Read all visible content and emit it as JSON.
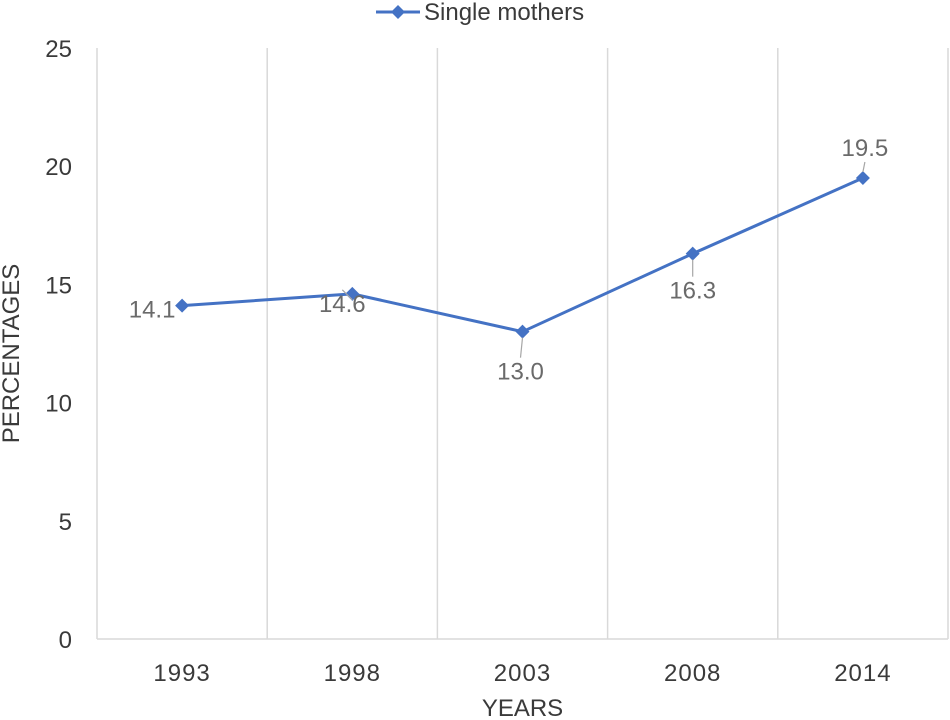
{
  "chart_data": {
    "type": "line",
    "categories": [
      "1993",
      "1998",
      "2003",
      "2008",
      "2014"
    ],
    "series": [
      {
        "name": "Single mothers",
        "values": [
          14.1,
          14.6,
          13.0,
          16.3,
          19.5
        ],
        "labels": [
          "14.1",
          "14.6",
          "13.0",
          "16.3",
          "19.5"
        ]
      }
    ],
    "xlabel": "YEARS",
    "ylabel": "PERCENTAGES",
    "ylim": [
      0,
      25
    ],
    "yticks": [
      "0",
      "5",
      "10",
      "15",
      "20",
      "25"
    ],
    "grid": "vertical",
    "legend_position": "top",
    "colors": {
      "series": "#4472c4",
      "grid": "#d9d9d9",
      "text": "#3a3a3a",
      "label": "#6a6a6a"
    }
  }
}
